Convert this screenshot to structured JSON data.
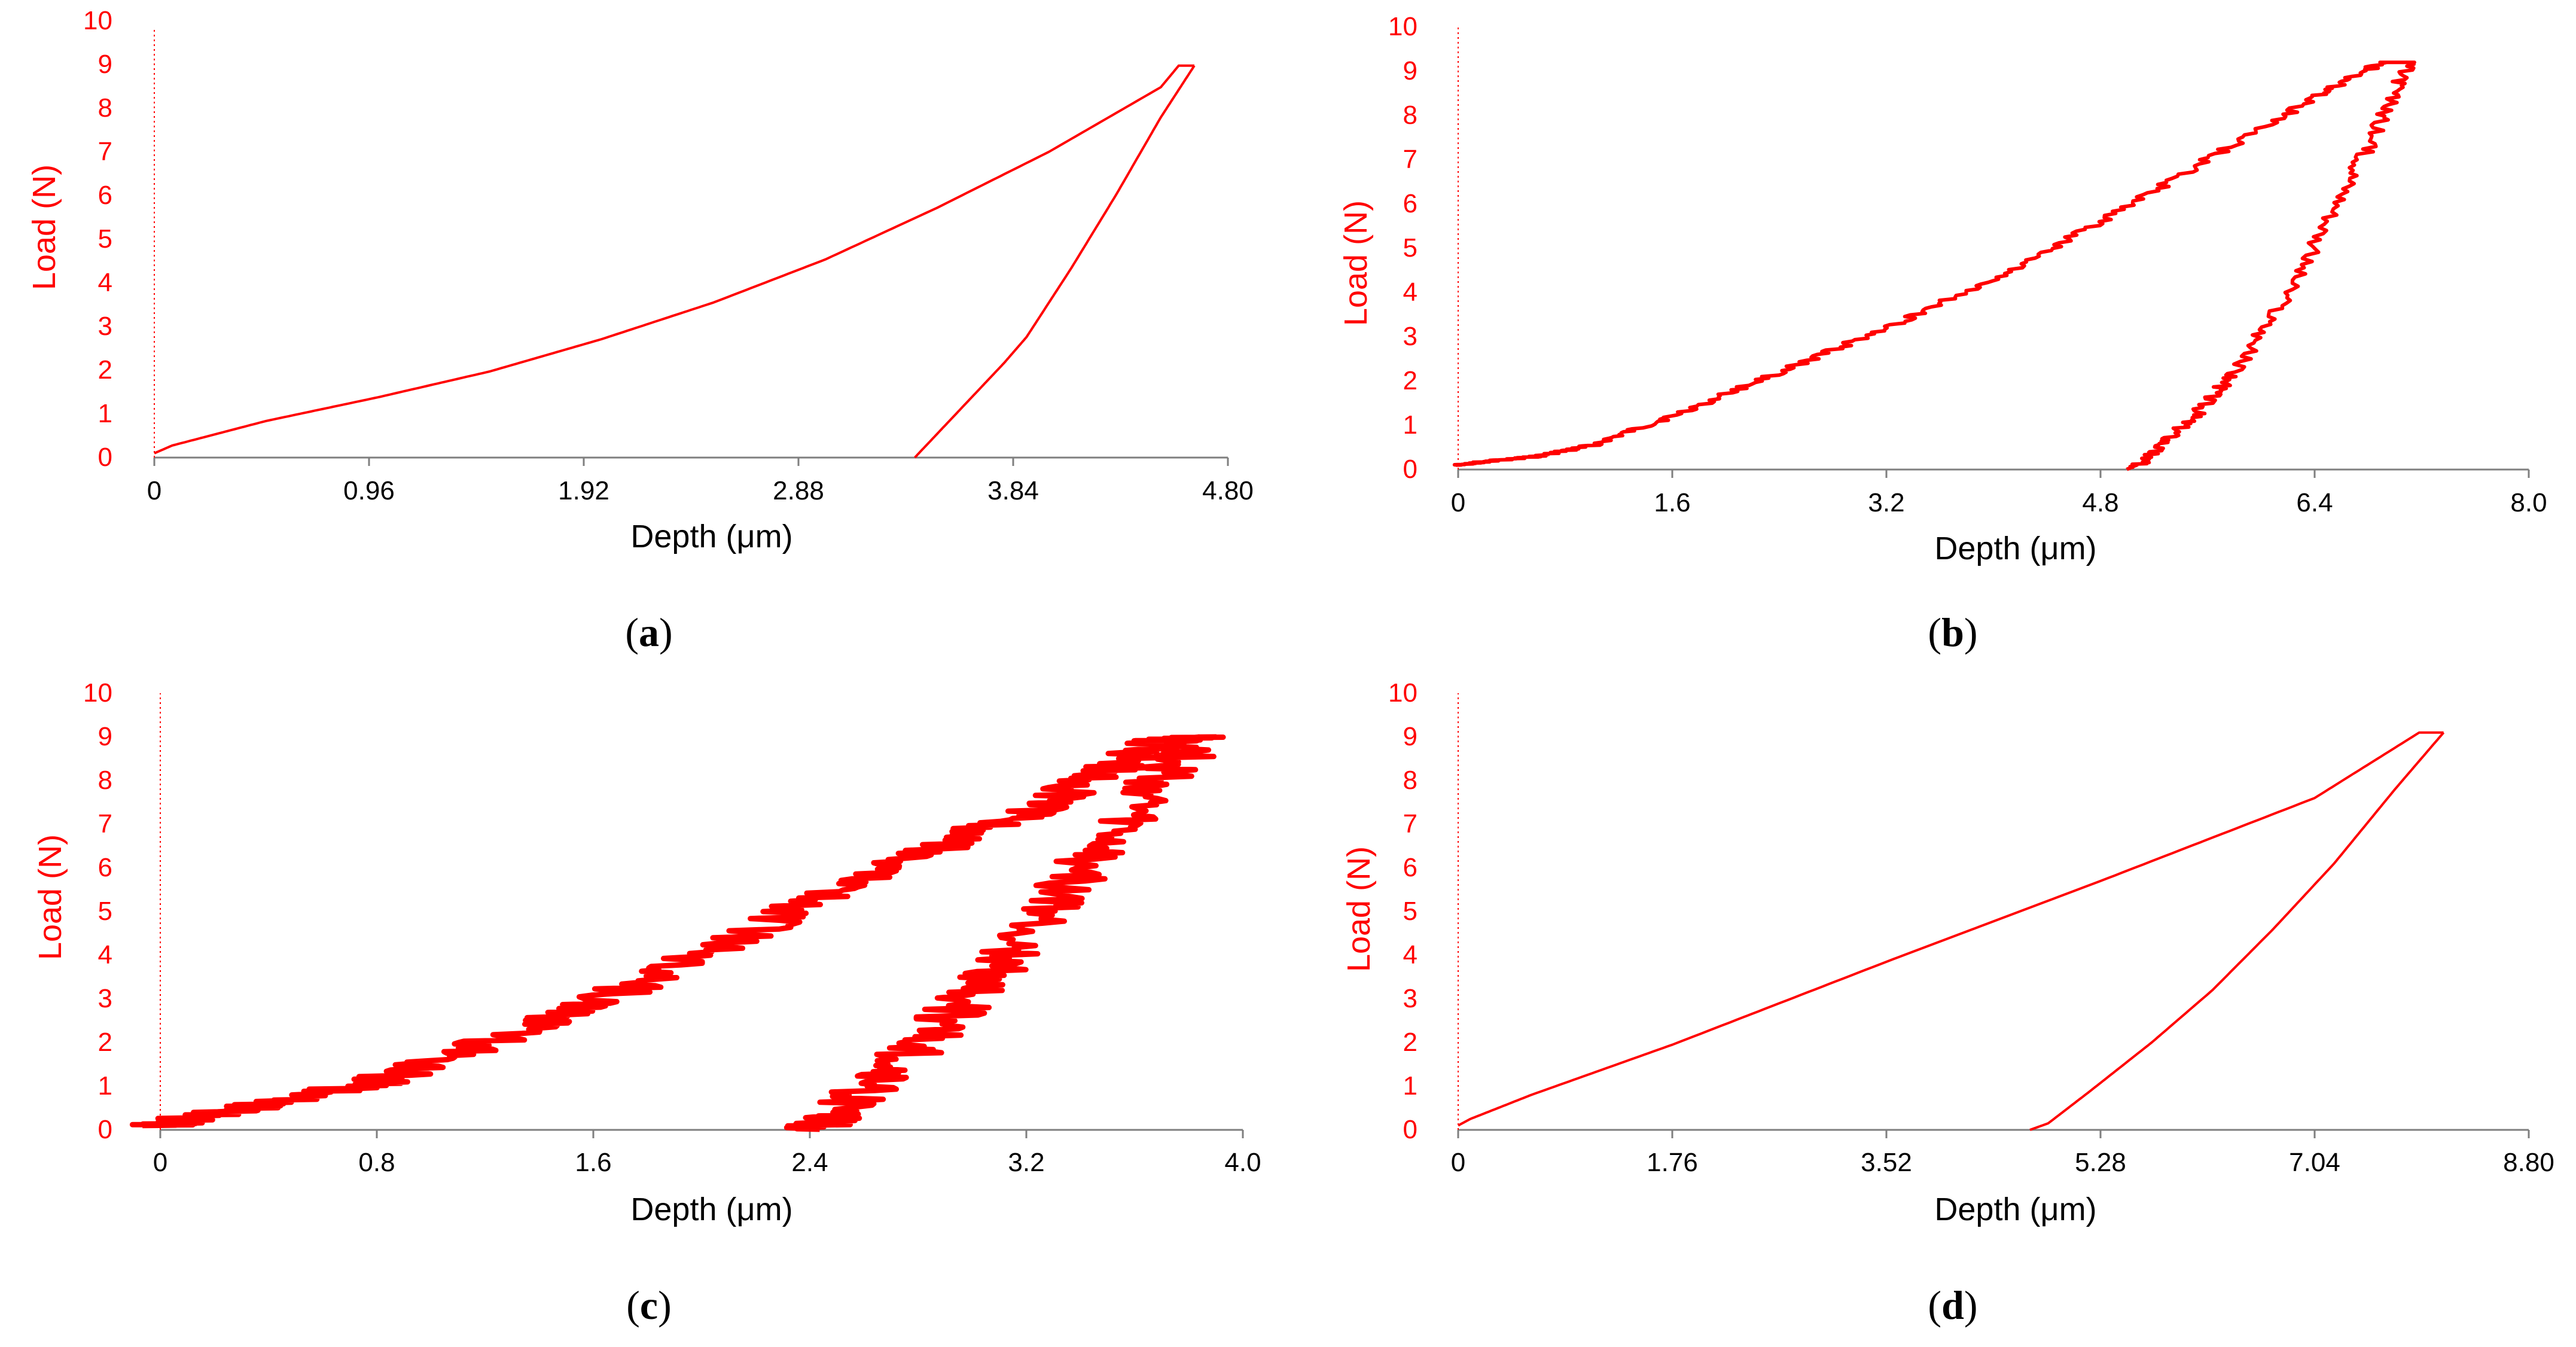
{
  "colors": {
    "curve": "#ff0000",
    "axis_text": "#ff0000",
    "axis_line": "#7f7f7f",
    "text": "#000000"
  },
  "chart_data": [
    {
      "type": "line",
      "caption_letter": "a",
      "xlabel": "Depth (μm)",
      "ylabel": "Load (N)",
      "xlim": [
        0,
        4.8
      ],
      "ylim": [
        0,
        10
      ],
      "x_ticks": [
        "0",
        "0.96",
        "1.92",
        "2.88",
        "3.84",
        "4.80"
      ],
      "y_ticks": [
        "0",
        "1",
        "2",
        "3",
        "4",
        "5",
        "6",
        "7",
        "8",
        "9",
        "10"
      ],
      "series": [
        {
          "name": "loading",
          "x": [
            0,
            0.08,
            0.5,
            1.0,
            1.5,
            2.0,
            2.5,
            3.0,
            3.5,
            4.0,
            4.5,
            4.58,
            4.65
          ],
          "y": [
            0.1,
            0.28,
            0.85,
            1.4,
            2.0,
            2.75,
            3.6,
            4.6,
            5.8,
            7.1,
            8.6,
            9.1,
            9.1
          ]
        },
        {
          "name": "unloading",
          "x": [
            4.65,
            4.5,
            4.3,
            4.1,
            3.9,
            3.8,
            3.6,
            3.4
          ],
          "y": [
            9.1,
            7.9,
            6.1,
            4.4,
            2.8,
            2.2,
            1.1,
            0.0
          ]
        }
      ],
      "noise": 0
    },
    {
      "type": "line",
      "caption_letter": "b",
      "xlabel": "Depth (μm)",
      "ylabel": "Load (N)",
      "xlim": [
        0,
        8.0
      ],
      "ylim": [
        0,
        10
      ],
      "x_ticks": [
        "0",
        "1.6",
        "3.2",
        "4.8",
        "6.4",
        "8.0"
      ],
      "y_ticks": [
        "0",
        "1",
        "2",
        "3",
        "4",
        "5",
        "6",
        "7",
        "8",
        "9",
        "10"
      ],
      "series": [
        {
          "name": "loading",
          "x": [
            0,
            0.2,
            0.6,
            1.0,
            1.6,
            2.4,
            3.2,
            4.0,
            4.8,
            5.6,
            6.4,
            6.9,
            7.1
          ],
          "y": [
            0.1,
            0.18,
            0.3,
            0.55,
            1.2,
            2.2,
            3.2,
            4.3,
            5.6,
            7.0,
            8.4,
            9.2,
            9.2
          ]
        },
        {
          "name": "unloading",
          "x": [
            7.1,
            6.9,
            6.6,
            6.2,
            5.8,
            5.5,
            5.2,
            5.05
          ],
          "y": [
            9.2,
            7.9,
            6.1,
            4.0,
            2.2,
            1.2,
            0.4,
            0.0
          ]
        }
      ],
      "noise": 0.06
    },
    {
      "type": "line",
      "caption_letter": "c",
      "xlabel": "Depth (μm)",
      "ylabel": "Load (N)",
      "xlim": [
        0,
        4.0
      ],
      "ylim": [
        0,
        10
      ],
      "x_ticks": [
        "0",
        "0.8",
        "1.6",
        "2.4",
        "3.2",
        "4.0"
      ],
      "y_ticks": [
        "0",
        "1",
        "2",
        "3",
        "4",
        "5",
        "6",
        "7",
        "8",
        "9",
        "10"
      ],
      "series": [
        {
          "name": "loading",
          "x": [
            0,
            0.1,
            0.4,
            0.8,
            1.2,
            1.6,
            2.0,
            2.4,
            2.8,
            3.2,
            3.5,
            3.7,
            3.85
          ],
          "y": [
            0.1,
            0.25,
            0.6,
            1.1,
            2.0,
            2.9,
            4.0,
            5.2,
            6.3,
            7.3,
            8.2,
            8.9,
            9.0
          ]
        },
        {
          "name": "unloading",
          "x": [
            3.85,
            3.7,
            3.5,
            3.3,
            3.1,
            2.9,
            2.7,
            2.5,
            2.4
          ],
          "y": [
            9.0,
            8.1,
            6.7,
            5.2,
            3.8,
            2.5,
            1.4,
            0.4,
            0.0
          ]
        }
      ],
      "noise": 0.12
    },
    {
      "type": "line",
      "caption_letter": "d",
      "xlabel": "Depth (μm)",
      "ylabel": "Load (N)",
      "xlim": [
        0,
        8.8
      ],
      "ylim": [
        0,
        10
      ],
      "x_ticks": [
        "0",
        "1.76",
        "3.52",
        "5.28",
        "7.04",
        "8.80"
      ],
      "y_ticks": [
        "0",
        "1",
        "2",
        "3",
        "4",
        "5",
        "6",
        "7",
        "8",
        "9",
        "10"
      ],
      "series": [
        {
          "name": "loading",
          "x": [
            0,
            0.1,
            0.6,
            1.76,
            3.52,
            5.28,
            7.04,
            7.9,
            8.1
          ],
          "y": [
            0.1,
            0.25,
            0.8,
            1.95,
            3.85,
            5.7,
            7.6,
            9.1,
            9.1
          ]
        },
        {
          "name": "unloading",
          "x": [
            8.1,
            7.7,
            7.2,
            6.7,
            6.2,
            5.7,
            5.2,
            4.85,
            4.7
          ],
          "y": [
            9.1,
            7.8,
            6.1,
            4.6,
            3.2,
            2.0,
            0.9,
            0.15,
            0.0
          ]
        }
      ],
      "noise": 0
    }
  ]
}
